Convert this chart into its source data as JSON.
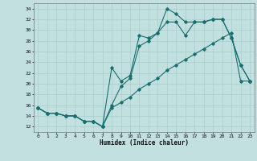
{
  "xlabel": "Humidex (Indice chaleur)",
  "bg_color": "#c2e0e0",
  "line_color": "#1a6e6e",
  "grid_color": "#a8cccc",
  "xlim": [
    -0.5,
    23.5
  ],
  "ylim": [
    11.0,
    35.0
  ],
  "xticks": [
    0,
    1,
    2,
    3,
    4,
    5,
    6,
    7,
    8,
    9,
    10,
    11,
    12,
    13,
    14,
    15,
    16,
    17,
    18,
    19,
    20,
    21,
    22,
    23
  ],
  "yticks": [
    12,
    14,
    16,
    18,
    20,
    22,
    24,
    26,
    28,
    30,
    32,
    34
  ],
  "line1_x": [
    0,
    1,
    2,
    3,
    4,
    5,
    6,
    7,
    8,
    9,
    10,
    11,
    12,
    13,
    14,
    15,
    16,
    17,
    18,
    19,
    20,
    21,
    22,
    23
  ],
  "line1_y": [
    15.5,
    14.5,
    14.5,
    14.0,
    14.0,
    13.0,
    13.0,
    12.0,
    16.0,
    19.5,
    21.0,
    27.0,
    28.0,
    29.5,
    31.5,
    31.5,
    29.0,
    31.5,
    31.5,
    32.0,
    32.0,
    28.5,
    23.5,
    20.5
  ],
  "line2_x": [
    0,
    1,
    2,
    3,
    4,
    5,
    6,
    7,
    8,
    9,
    10,
    11,
    12,
    13,
    14,
    15,
    16,
    17,
    18,
    19,
    20,
    21,
    22,
    23
  ],
  "line2_y": [
    15.5,
    14.5,
    14.5,
    14.0,
    14.0,
    13.0,
    13.0,
    12.0,
    23.0,
    20.5,
    21.5,
    29.0,
    28.5,
    29.5,
    34.0,
    33.0,
    31.5,
    31.5,
    31.5,
    32.0,
    32.0,
    28.5,
    23.5,
    20.5
  ],
  "line3_x": [
    0,
    1,
    2,
    3,
    4,
    5,
    6,
    7,
    8,
    9,
    10,
    11,
    12,
    13,
    14,
    15,
    16,
    17,
    18,
    19,
    20,
    21,
    22,
    23
  ],
  "line3_y": [
    15.5,
    14.5,
    14.5,
    14.0,
    14.0,
    13.0,
    13.0,
    12.0,
    15.5,
    16.5,
    17.5,
    19.0,
    20.0,
    21.0,
    22.5,
    23.5,
    24.5,
    25.5,
    26.5,
    27.5,
    28.5,
    29.5,
    20.5,
    20.5
  ]
}
